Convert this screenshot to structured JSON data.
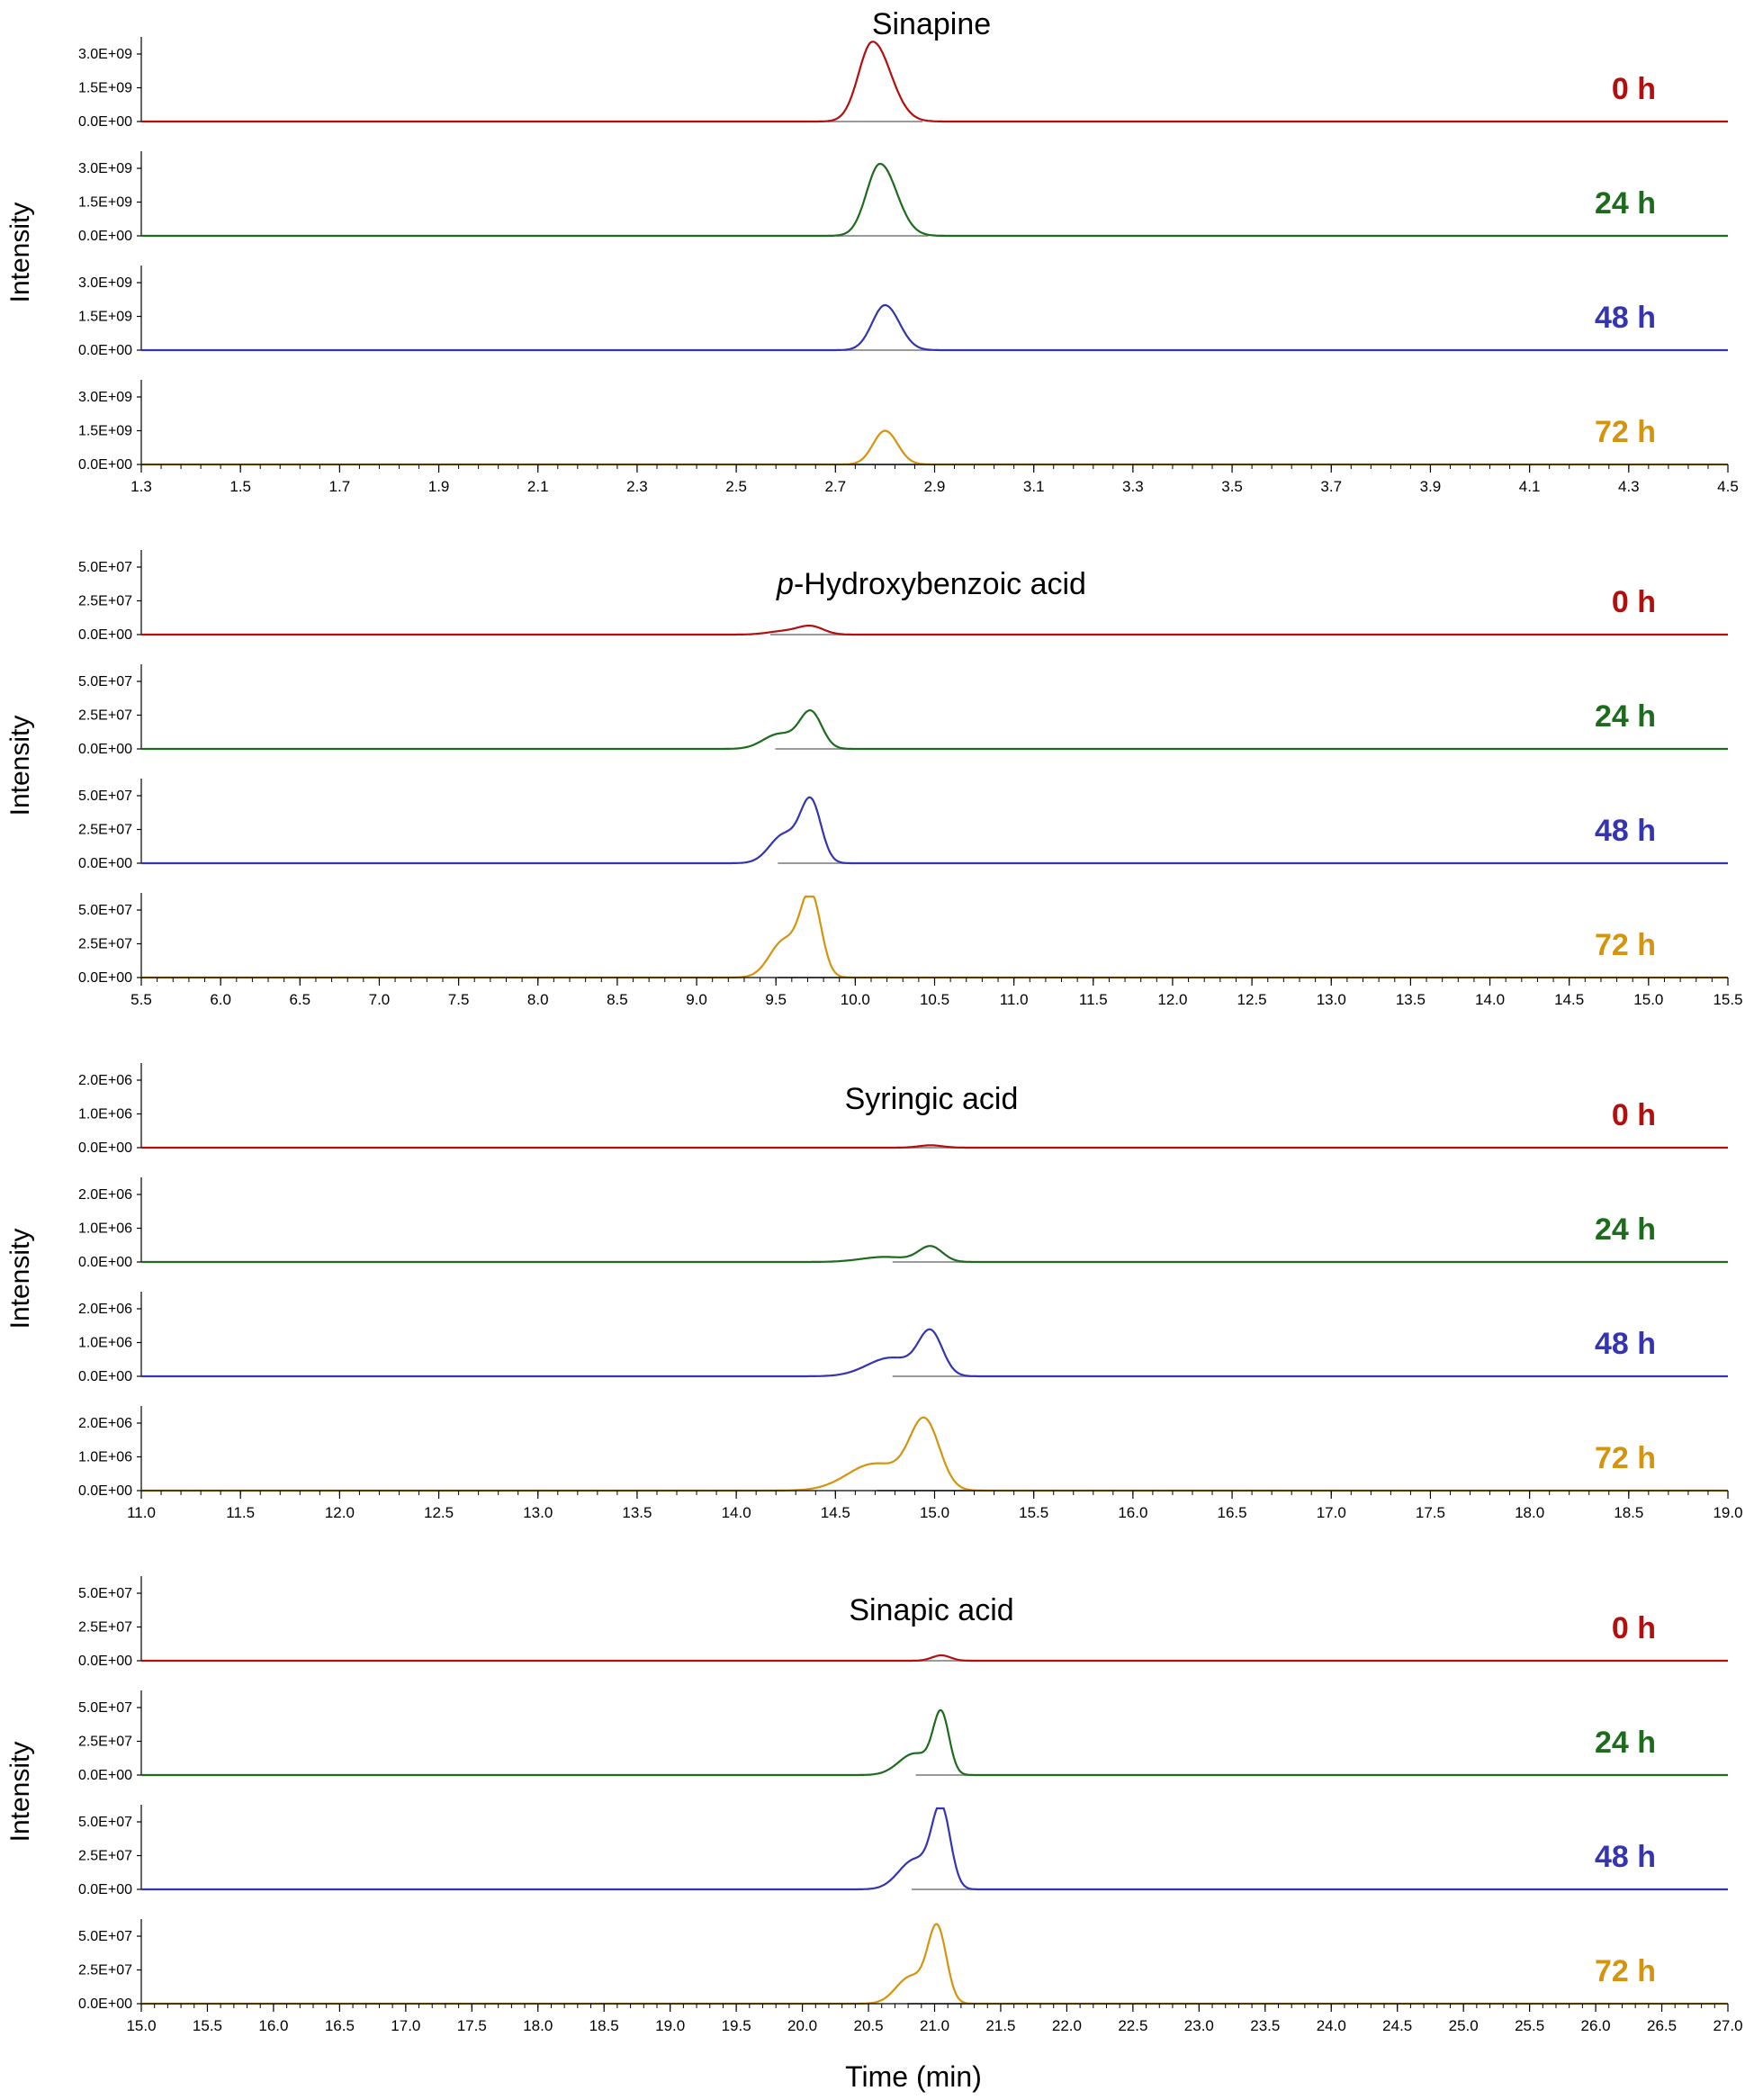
{
  "x_axis_label": "Time (min)",
  "colors": {
    "0 h": "#b30f0f",
    "24 h": "#1d6b1d",
    "48 h": "#3535b0",
    "72 h": "#d4940e"
  },
  "chart_data": [
    {
      "type": "line",
      "title": "Sinapine",
      "title_html": "Sinapine",
      "ylabel": "Intensity",
      "xlim": [
        1.3,
        4.5
      ],
      "x_ticks": [
        "1.3",
        "1.5",
        "1.7",
        "1.9",
        "2.1",
        "2.3",
        "2.5",
        "2.7",
        "2.9",
        "3.1",
        "3.3",
        "3.5",
        "3.7",
        "3.9",
        "4.1",
        "4.3",
        "4.5"
      ],
      "ylim": [
        0,
        3600000000.0
      ],
      "y_ticks": [
        "0.0E+00",
        "1.5E+09",
        "3.0E+09"
      ],
      "y_tick_values": [
        0,
        1500000000.0,
        3000000000.0
      ],
      "series": [
        {
          "name": "0 h",
          "peaks": [
            {
              "x": 2.775,
              "w": 0.028,
              "h": 3550000000.0,
              "tail": 0.05
            }
          ]
        },
        {
          "name": "24 h",
          "peaks": [
            {
              "x": 2.79,
              "w": 0.027,
              "h": 3200000000.0,
              "tail": 0.04
            }
          ]
        },
        {
          "name": "48 h",
          "peaks": [
            {
              "x": 2.8,
              "w": 0.026,
              "h": 2000000000.0,
              "tail": 0.02
            }
          ]
        },
        {
          "name": "72 h",
          "peaks": [
            {
              "x": 2.8,
              "w": 0.024,
              "h": 1500000000.0,
              "tail": 0.01
            }
          ]
        }
      ]
    },
    {
      "type": "line",
      "title": "p-Hydroxybenzoic acid",
      "title_italic_prefix": "p",
      "title_rest": "-Hydroxybenzoic acid",
      "ylabel": "Intensity",
      "xlim": [
        5.5,
        15.5
      ],
      "x_ticks": [
        "5.5",
        "6.0",
        "6.5",
        "7.0",
        "7.5",
        "8.0",
        "8.5",
        "9.0",
        "9.5",
        "10.0",
        "10.5",
        "11.0",
        "11.5",
        "12.0",
        "12.5",
        "13.0",
        "13.5",
        "14.0",
        "14.5",
        "15.0",
        "15.5"
      ],
      "ylim": [
        0,
        60000000.0
      ],
      "y_ticks": [
        "0.0E+00",
        "2.5E+07",
        "5.0E+07"
      ],
      "y_tick_values": [
        0,
        25000000.0,
        50000000.0
      ],
      "series": [
        {
          "name": "0 h",
          "peaks": [
            {
              "x": 9.72,
              "w": 0.08,
              "h": 6000000.0,
              "tail": 0.0
            },
            {
              "x": 9.55,
              "w": 0.1,
              "h": 2500000.0,
              "tail": 0.0
            }
          ]
        },
        {
          "name": "24 h",
          "peaks": [
            {
              "x": 9.72,
              "w": 0.07,
              "h": 27000000.0,
              "tail": 0.0
            },
            {
              "x": 9.52,
              "w": 0.1,
              "h": 11000000.0,
              "tail": 0.0
            }
          ]
        },
        {
          "name": "48 h",
          "peaks": [
            {
              "x": 9.72,
              "w": 0.065,
              "h": 45000000.0,
              "tail": 0.0
            },
            {
              "x": 9.55,
              "w": 0.09,
              "h": 21000000.0,
              "tail": 0.0
            }
          ]
        },
        {
          "name": "72 h",
          "peaks": [
            {
              "x": 9.72,
              "w": 0.065,
              "h": 60000000.0,
              "tail": 0.0
            },
            {
              "x": 9.55,
              "w": 0.09,
              "h": 27000000.0,
              "tail": 0.0
            }
          ]
        }
      ]
    },
    {
      "type": "line",
      "title": "Syringic acid",
      "title_html": "Syringic acid",
      "ylabel": "Intensity",
      "xlim": [
        11.0,
        19.0
      ],
      "x_ticks": [
        "11.0",
        "11.5",
        "12.0",
        "12.5",
        "13.0",
        "13.5",
        "14.0",
        "14.5",
        "15.0",
        "15.5",
        "16.0",
        "16.5",
        "17.0",
        "17.5",
        "18.0",
        "18.5",
        "19.0"
      ],
      "ylim": [
        0,
        2400000.0
      ],
      "y_ticks": [
        "0.0E+00",
        "1.0E+06",
        "2.0E+06"
      ],
      "y_tick_values": [
        0,
        1000000.0,
        2000000.0
      ],
      "series": [
        {
          "name": "0 h",
          "peaks": [
            {
              "x": 14.98,
              "w": 0.06,
              "h": 70000.0,
              "tail": 0.0
            }
          ]
        },
        {
          "name": "24 h",
          "peaks": [
            {
              "x": 14.98,
              "w": 0.06,
              "h": 450000.0,
              "tail": 0.0
            },
            {
              "x": 14.75,
              "w": 0.12,
              "h": 150000.0,
              "tail": 0.0
            }
          ]
        },
        {
          "name": "48 h",
          "peaks": [
            {
              "x": 14.98,
              "w": 0.06,
              "h": 1250000.0,
              "tail": 0.0
            },
            {
              "x": 14.78,
              "w": 0.12,
              "h": 550000.0,
              "tail": 0.0
            }
          ]
        },
        {
          "name": "72 h",
          "peaks": [
            {
              "x": 14.95,
              "w": 0.075,
              "h": 2000000.0,
              "tail": 0.0
            },
            {
              "x": 14.7,
              "w": 0.14,
              "h": 800000.0,
              "tail": 0.0
            }
          ]
        }
      ]
    },
    {
      "type": "line",
      "title": "Sinapic acid",
      "title_html": "Sinapic acid",
      "ylabel": "Intensity",
      "xlim": [
        15.0,
        27.0
      ],
      "x_ticks": [
        "15.0",
        "15.5",
        "16.0",
        "16.5",
        "17.0",
        "17.5",
        "18.0",
        "18.5",
        "19.0",
        "19.5",
        "20.0",
        "20.5",
        "21.0",
        "21.5",
        "22.0",
        "22.5",
        "23.0",
        "23.5",
        "24.0",
        "24.5",
        "25.0",
        "25.5",
        "26.0",
        "26.5",
        "27.0"
      ],
      "ylim": [
        0,
        60000000.0
      ],
      "y_ticks": [
        "0.0E+00",
        "2.5E+07",
        "5.0E+07"
      ],
      "y_tick_values": [
        0,
        25000000.0,
        50000000.0
      ],
      "series": [
        {
          "name": "0 h",
          "peaks": [
            {
              "x": 21.05,
              "w": 0.07,
              "h": 4000000.0,
              "tail": 0.0
            }
          ]
        },
        {
          "name": "24 h",
          "peaks": [
            {
              "x": 21.05,
              "w": 0.06,
              "h": 44000000.0,
              "tail": 0.0
            },
            {
              "x": 20.85,
              "w": 0.12,
              "h": 16000000.0,
              "tail": 0.0
            }
          ]
        },
        {
          "name": "48 h",
          "peaks": [
            {
              "x": 21.05,
              "w": 0.07,
              "h": 58000000.0,
              "tail": 0.0
            },
            {
              "x": 20.85,
              "w": 0.12,
              "h": 22000000.0,
              "tail": 0.0
            }
          ]
        },
        {
          "name": "72 h",
          "peaks": [
            {
              "x": 21.02,
              "w": 0.07,
              "h": 55000000.0,
              "tail": 0.0
            },
            {
              "x": 20.82,
              "w": 0.11,
              "h": 20000000.0,
              "tail": 0.0
            }
          ]
        }
      ]
    }
  ]
}
